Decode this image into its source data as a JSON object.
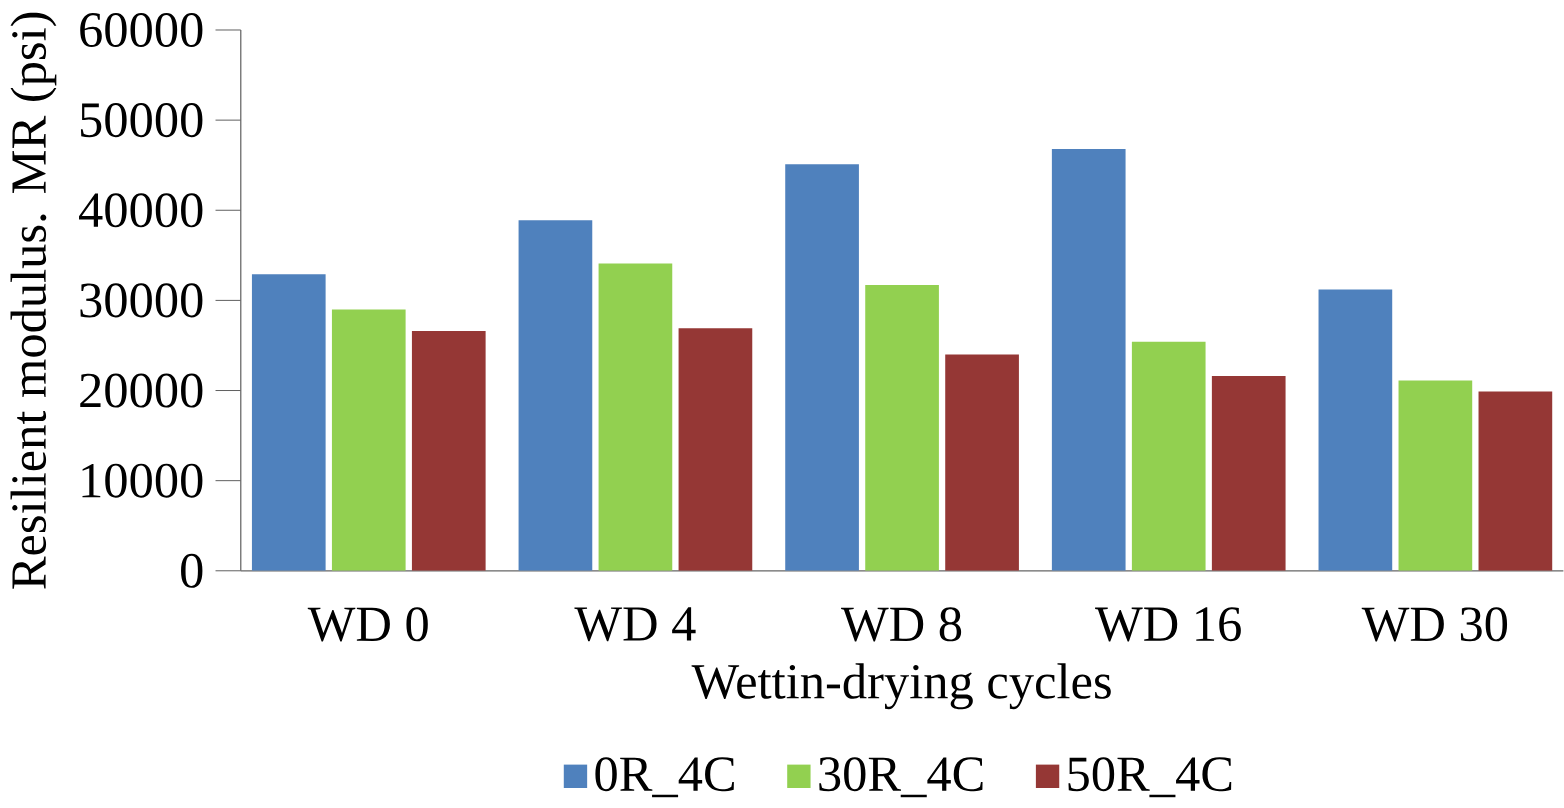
{
  "chart_data": {
    "type": "bar",
    "xlabel": "Wettin-drying cycles",
    "ylabel": "Resilient modulus. MR (psi)",
    "categories": [
      "WD 0",
      "WD 4",
      "WD 8",
      "WD 16",
      "WD 30"
    ],
    "series": [
      {
        "name": "0R_4C",
        "color": "#4f81bd",
        "values": [
          32900,
          38900,
          45100,
          46800,
          31200
        ]
      },
      {
        "name": "30R_4C",
        "color": "#92d050",
        "values": [
          29000,
          34100,
          31700,
          25400,
          21100
        ]
      },
      {
        "name": "50R_4C",
        "color": "#953735",
        "values": [
          26600,
          26900,
          24000,
          21600,
          19900
        ]
      }
    ],
    "ylim": [
      0,
      60000
    ],
    "yticks": [
      0,
      10000,
      20000,
      30000,
      40000,
      50000,
      60000
    ],
    "grid": false,
    "legend": "bottom"
  }
}
